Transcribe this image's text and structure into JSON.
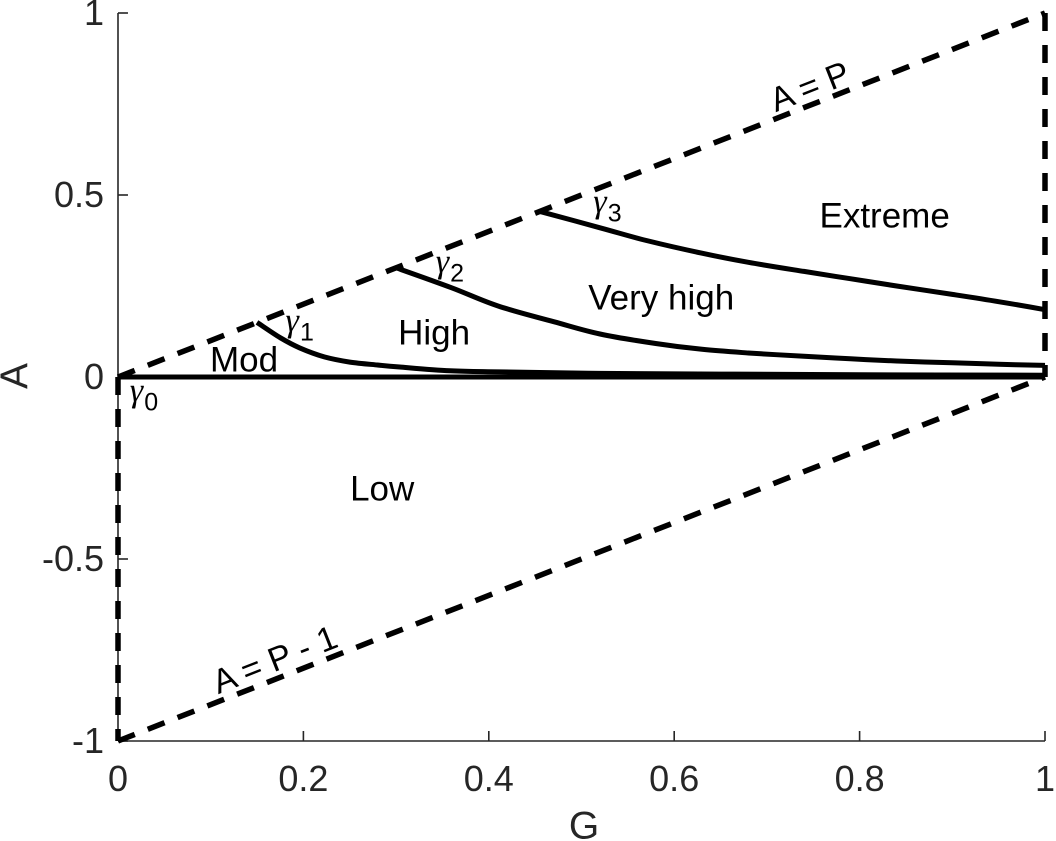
{
  "style": {
    "background_color": "#ffffff",
    "line_color": "#000000",
    "axis_color": "#262626"
  },
  "chart_data": {
    "type": "line",
    "title": "",
    "xlabel": "G",
    "ylabel": "A",
    "xlim": [
      0,
      1
    ],
    "ylim": [
      -1,
      1
    ],
    "grid": false,
    "legend": "none",
    "xticks": [
      0,
      0.2,
      0.4,
      0.6,
      0.8,
      1
    ],
    "xtick_labels": [
      "0",
      "0.2",
      "0.4",
      "0.6",
      "0.8",
      "1"
    ],
    "yticks": [
      1,
      0.5,
      0,
      -0.5,
      -1
    ],
    "ytick_labels": [
      "1",
      "0.5",
      "0",
      "-0.5",
      "-1"
    ],
    "boundary_lines": [
      {
        "id": "a-equals-p",
        "label": "A = P",
        "style": "dashed",
        "points": [
          [
            0,
            0
          ],
          [
            1,
            1
          ]
        ]
      },
      {
        "id": "a-equals-p-minus-1",
        "label": "A = P - 1",
        "style": "dashed",
        "points": [
          [
            0,
            -1
          ],
          [
            1,
            0
          ]
        ]
      },
      {
        "id": "left-edge",
        "label": "",
        "style": "dashed",
        "points": [
          [
            0,
            0
          ],
          [
            0,
            -1
          ]
        ]
      },
      {
        "id": "right-edge",
        "label": "",
        "style": "dashed",
        "points": [
          [
            1,
            1
          ],
          [
            1,
            0
          ]
        ]
      }
    ],
    "series": [
      {
        "name": "gamma_0",
        "style": "solid",
        "points": [
          [
            0,
            0
          ],
          [
            1,
            0
          ]
        ]
      },
      {
        "name": "gamma_1",
        "style": "solid",
        "points": [
          [
            0.15,
            0.15
          ],
          [
            0.175,
            0.108
          ],
          [
            0.196,
            0.08
          ],
          [
            0.223,
            0.055
          ],
          [
            0.25,
            0.041
          ],
          [
            0.28,
            0.033
          ],
          [
            0.304,
            0.0275
          ],
          [
            0.358,
            0.017
          ],
          [
            0.412,
            0.014
          ],
          [
            0.52,
            0.01
          ],
          [
            0.65,
            0.008
          ],
          [
            0.8,
            0.006
          ],
          [
            1,
            0.005
          ]
        ]
      },
      {
        "name": "gamma_2",
        "style": "solid",
        "points": [
          [
            0.3,
            0.3
          ],
          [
            0.36,
            0.245
          ],
          [
            0.41,
            0.195
          ],
          [
            0.47,
            0.152
          ],
          [
            0.52,
            0.118
          ],
          [
            0.58,
            0.092
          ],
          [
            0.63,
            0.076
          ],
          [
            0.68,
            0.066
          ],
          [
            0.74,
            0.057
          ],
          [
            0.79,
            0.05
          ],
          [
            0.84,
            0.044
          ],
          [
            0.9,
            0.039
          ],
          [
            0.95,
            0.035
          ],
          [
            1,
            0.032
          ]
        ]
      },
      {
        "name": "gamma_3",
        "style": "solid",
        "points": [
          [
            0.455,
            0.455
          ],
          [
            0.52,
            0.41
          ],
          [
            0.57,
            0.375
          ],
          [
            0.63,
            0.34
          ],
          [
            0.68,
            0.315
          ],
          [
            0.74,
            0.29
          ],
          [
            0.79,
            0.27
          ],
          [
            0.84,
            0.25
          ],
          [
            0.9,
            0.227
          ],
          [
            0.95,
            0.207
          ],
          [
            1,
            0.185
          ]
        ]
      }
    ],
    "region_labels": [
      {
        "text": "Low",
        "G": 0.285,
        "A": -0.308
      },
      {
        "text": "Mod",
        "G": 0.136,
        "A": 0.047
      },
      {
        "text": "High",
        "G": 0.341,
        "A": 0.121
      },
      {
        "text": "Very high",
        "G": 0.586,
        "A": 0.217
      },
      {
        "text": "Extreme",
        "G": 0.827,
        "A": 0.442
      }
    ],
    "line_labels": [
      {
        "text": "A = P",
        "G": 0.747,
        "A": 0.797
      },
      {
        "text": "A = P - 1",
        "G": 0.169,
        "A": -0.777
      }
    ],
    "curve_labels": [
      {
        "base": "γ",
        "sub": "0",
        "G": 0.028,
        "A": -0.049
      },
      {
        "base": "γ",
        "sub": "1",
        "G": 0.196,
        "A": 0.143
      },
      {
        "base": "γ",
        "sub": "2",
        "G": 0.358,
        "A": 0.305
      },
      {
        "base": "γ",
        "sub": "3",
        "G": 0.528,
        "A": 0.47
      }
    ]
  }
}
